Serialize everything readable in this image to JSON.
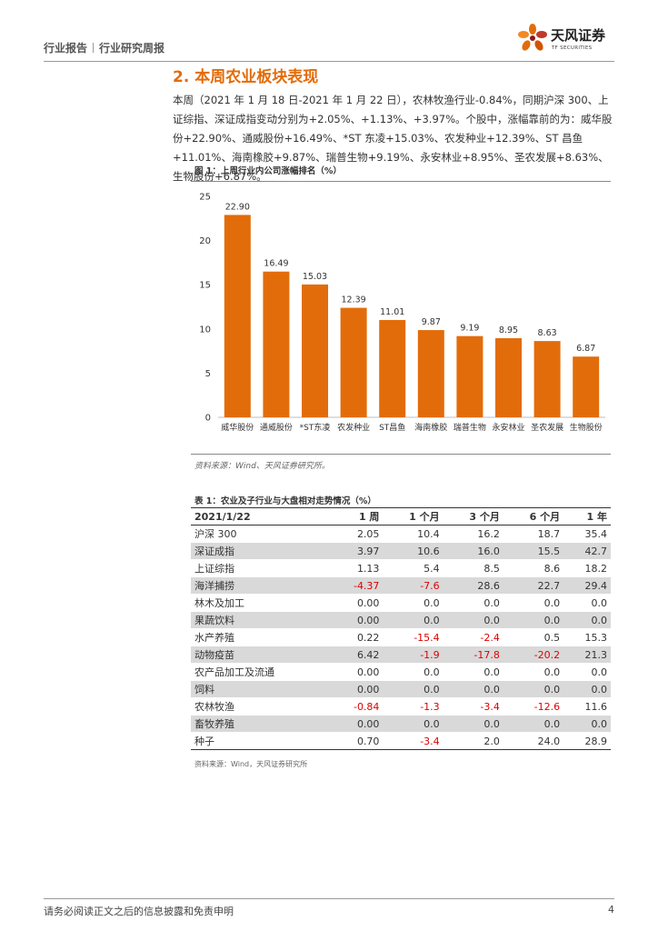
{
  "header": {
    "left_text_1": "行业报告",
    "left_text_2": "行业研究周报",
    "logo_name": "天风证券",
    "logo_sub": "TF SECURITIES"
  },
  "section": {
    "title": "2. 本周农业板块表现",
    "paragraph": "本周（2021 年 1 月 18 日-2021 年 1 月 22 日），农林牧渔行业-0.84%，同期沪深 300、上证综指、深证成指变动分别为+2.05%、+1.13%、+3.97%。个股中，涨幅靠前的为：威华股份+22.90%、通威股份+16.49%、*ST 东凌+15.03%、农发种业+12.39%、ST 昌鱼+11.01%、海南橡胶+9.87%、瑞普生物+9.19%、永安林业+8.95%、圣农发展+8.63%、生物股份+6.87%。"
  },
  "figure": {
    "title": "图 1：上周行业内公司涨幅排名（%）",
    "source": "资料来源：Wind、天风证券研究所。"
  },
  "chart_data": {
    "type": "bar",
    "categories": [
      "威华股份",
      "通威股份",
      "*ST东凌",
      "农发种业",
      "ST昌鱼",
      "海南橡胶",
      "瑞普生物",
      "永安林业",
      "圣农发展",
      "生物股份"
    ],
    "values": [
      22.9,
      16.49,
      15.03,
      12.39,
      11.01,
      9.87,
      9.19,
      8.95,
      8.63,
      6.87
    ],
    "data_labels": [
      "22.90",
      "16.49",
      "15.03",
      "12.39",
      "11.01",
      "9.87",
      "9.19",
      "8.95",
      "8.63",
      "6.87"
    ],
    "ylim": [
      0,
      25
    ],
    "yticks": [
      "0",
      "5",
      "10",
      "15",
      "20",
      "25"
    ],
    "bar_color": "#e36c0a",
    "grid": false,
    "legend": "none"
  },
  "table": {
    "title": "表 1：农业及子行业与大盘相对走势情况（%）",
    "headers": [
      "2021/1/22",
      "1 周",
      "1 个月",
      "3 个月",
      "6 个月",
      "1 年"
    ],
    "rows": [
      {
        "name": "沪深 300",
        "values": [
          "2.05",
          "10.4",
          "16.2",
          "18.7",
          "35.4"
        ]
      },
      {
        "name": "深证成指",
        "values": [
          "3.97",
          "10.6",
          "16.0",
          "15.5",
          "42.7"
        ]
      },
      {
        "name": "上证综指",
        "values": [
          "1.13",
          "5.4",
          "8.5",
          "8.6",
          "18.2"
        ]
      },
      {
        "name": "海洋捕捞",
        "values": [
          "-4.37",
          "-7.6",
          "28.6",
          "22.7",
          "29.4"
        ]
      },
      {
        "name": "林木及加工",
        "values": [
          "0.00",
          "0.0",
          "0.0",
          "0.0",
          "0.0"
        ]
      },
      {
        "name": "果蔬饮料",
        "values": [
          "0.00",
          "0.0",
          "0.0",
          "0.0",
          "0.0"
        ]
      },
      {
        "name": "水产养殖",
        "values": [
          "0.22",
          "-15.4",
          "-2.4",
          "0.5",
          "15.3"
        ]
      },
      {
        "name": "动物疫苗",
        "values": [
          "6.42",
          "-1.9",
          "-17.8",
          "-20.2",
          "21.3"
        ]
      },
      {
        "name": "农产品加工及流通",
        "values": [
          "0.00",
          "0.0",
          "0.0",
          "0.0",
          "0.0"
        ]
      },
      {
        "name": "饲料",
        "values": [
          "0.00",
          "0.0",
          "0.0",
          "0.0",
          "0.0"
        ]
      },
      {
        "name": "农林牧渔",
        "values": [
          "-0.84",
          "-1.3",
          "-3.4",
          "-12.6",
          "11.6"
        ]
      },
      {
        "name": "畜牧养殖",
        "values": [
          "0.00",
          "0.0",
          "0.0",
          "0.0",
          "0.0"
        ]
      },
      {
        "name": "种子",
        "values": [
          "0.70",
          "-3.4",
          "2.0",
          "24.0",
          "28.9"
        ]
      }
    ],
    "source": "资料来源：Wind，天风证券研究所"
  },
  "footer": {
    "disclaimer": "请务必阅读正文之后的信息披露和免责申明",
    "page": "4"
  }
}
